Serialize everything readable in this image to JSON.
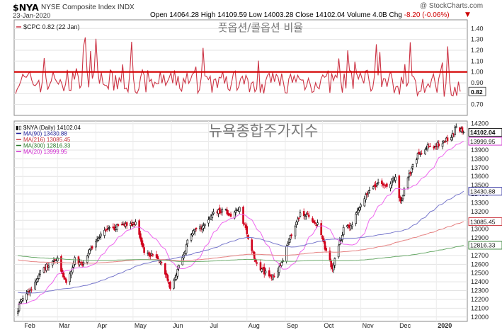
{
  "header": {
    "symbol": "$NYA",
    "name": "NYSE Composite Index  INDX",
    "date": "23-Jan-2020",
    "credit": "@ StockCharts.com",
    "quote_main": "Open 14064.28  High 14109.59  Low 14003.28  Close 14102.04  Volume 4.0B  Chg",
    "quote_change": "-8.20 (-0.06%)",
    "change_arrow": "▼"
  },
  "overlays": {
    "upper": "풋옵션/콜옵션 비율",
    "lower": "뉴욕종합주가지수"
  },
  "colors": {
    "cpc": "#cc3344",
    "ref_line": "#d40000",
    "price_up": "#000000",
    "price_down": "#d0001c",
    "ma90": "#7878cc",
    "ma216": "#e58080",
    "ma300": "#6aaa6a",
    "ma20": "#ee66ee",
    "grid": "#e3e3e3"
  },
  "chart_data": [
    {
      "type": "line",
      "title": "$CPC 0.82 (22 Jan)",
      "series": [
        {
          "name": "$CPC",
          "last": 0.82
        }
      ],
      "reference_line": 1.0,
      "ylim": [
        0.6,
        1.48
      ],
      "y_ticks": [
        0.7,
        0.8,
        0.9,
        1.0,
        1.1,
        1.2,
        1.3,
        1.4
      ],
      "last_label": "0.82",
      "grid": true
    },
    {
      "type": "candlestick",
      "title": "$NYA (Daily) 14102.04",
      "x_ticks": [
        "Feb",
        "Mar",
        "Apr",
        "May",
        "Jun",
        "Jul",
        "Aug",
        "Sep",
        "Oct",
        "Nov",
        "Dec",
        "2020"
      ],
      "y_ticks": [
        12000,
        12100,
        12200,
        12300,
        12400,
        12500,
        12600,
        12700,
        12800,
        12900,
        13000,
        13100,
        13200,
        13300,
        13400,
        13500,
        13600,
        13700,
        13800,
        13900,
        14000,
        14100,
        14200
      ],
      "ylim": [
        11950,
        14230
      ],
      "legend": [
        {
          "name": "$NYA (Daily)",
          "value": "14102.04",
          "color": "#000000"
        },
        {
          "name": "MA(90)",
          "value": "13430.88",
          "color": "#22229a"
        },
        {
          "name": "MA(216)",
          "value": "13085.45",
          "color": "#c8303a"
        },
        {
          "name": "MA(300)",
          "value": "12816.33",
          "color": "#2a7a2a"
        },
        {
          "name": "MA(20)",
          "value": "13999.95",
          "color": "#cc22cc"
        }
      ],
      "last_values": [
        {
          "name": "close",
          "value": "14102.04"
        },
        {
          "name": "MA(20)",
          "value": "13999.95"
        },
        {
          "name": "MA(90)",
          "value": "13430.88"
        },
        {
          "name": "MA(216)",
          "value": "13085.45"
        },
        {
          "name": "MA(300)",
          "value": "12816.33"
        }
      ],
      "price_path": [
        {
          "date": "2019-01-28",
          "close": 12080
        },
        {
          "date": "2019-02-01",
          "close": 12230
        },
        {
          "date": "2019-02-08",
          "close": 12320
        },
        {
          "date": "2019-02-15",
          "close": 12520
        },
        {
          "date": "2019-02-22",
          "close": 12600
        },
        {
          "date": "2019-03-01",
          "close": 12650
        },
        {
          "date": "2019-03-08",
          "close": 12400
        },
        {
          "date": "2019-03-15",
          "close": 12650
        },
        {
          "date": "2019-03-22",
          "close": 12600
        },
        {
          "date": "2019-03-29",
          "close": 12800
        },
        {
          "date": "2019-04-05",
          "close": 12950
        },
        {
          "date": "2019-04-12",
          "close": 13000
        },
        {
          "date": "2019-04-19",
          "close": 13030
        },
        {
          "date": "2019-04-26",
          "close": 13050
        },
        {
          "date": "2019-05-03",
          "close": 13080
        },
        {
          "date": "2019-05-10",
          "close": 12750
        },
        {
          "date": "2019-05-17",
          "close": 12700
        },
        {
          "date": "2019-05-24",
          "close": 12600
        },
        {
          "date": "2019-05-31",
          "close": 12350
        },
        {
          "date": "2019-06-05",
          "close": 12500
        },
        {
          "date": "2019-06-14",
          "close": 12850
        },
        {
          "date": "2019-06-21",
          "close": 13000
        },
        {
          "date": "2019-06-28",
          "close": 13050
        },
        {
          "date": "2019-07-05",
          "close": 13180
        },
        {
          "date": "2019-07-12",
          "close": 13220
        },
        {
          "date": "2019-07-19",
          "close": 13170
        },
        {
          "date": "2019-07-26",
          "close": 13230
        },
        {
          "date": "2019-08-02",
          "close": 12900
        },
        {
          "date": "2019-08-09",
          "close": 12600
        },
        {
          "date": "2019-08-16",
          "close": 12500
        },
        {
          "date": "2019-08-23",
          "close": 12450
        },
        {
          "date": "2019-08-30",
          "close": 12650
        },
        {
          "date": "2019-09-06",
          "close": 12950
        },
        {
          "date": "2019-09-13",
          "close": 13180
        },
        {
          "date": "2019-09-20",
          "close": 13150
        },
        {
          "date": "2019-09-27",
          "close": 13050
        },
        {
          "date": "2019-10-04",
          "close": 12750
        },
        {
          "date": "2019-10-09",
          "close": 12550
        },
        {
          "date": "2019-10-18",
          "close": 13000
        },
        {
          "date": "2019-10-25",
          "close": 13050
        },
        {
          "date": "2019-11-01",
          "close": 13300
        },
        {
          "date": "2019-11-08",
          "close": 13420
        },
        {
          "date": "2019-11-15",
          "close": 13520
        },
        {
          "date": "2019-11-22",
          "close": 13480
        },
        {
          "date": "2019-11-29",
          "close": 13600
        },
        {
          "date": "2019-12-03",
          "close": 13300
        },
        {
          "date": "2019-12-10",
          "close": 13620
        },
        {
          "date": "2019-12-17",
          "close": 13850
        },
        {
          "date": "2019-12-24",
          "close": 13930
        },
        {
          "date": "2019-12-31",
          "close": 13950
        },
        {
          "date": "2020-01-08",
          "close": 14000
        },
        {
          "date": "2020-01-15",
          "close": 14080
        },
        {
          "date": "2020-01-17",
          "close": 14180
        },
        {
          "date": "2020-01-23",
          "close": 14102
        }
      ]
    }
  ]
}
